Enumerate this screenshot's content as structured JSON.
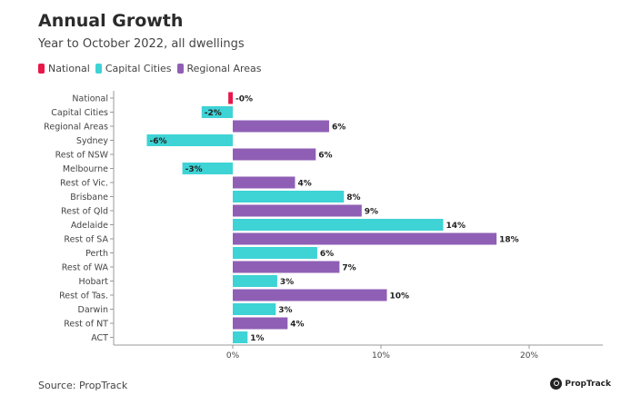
{
  "header": {
    "title": "Annual Growth",
    "subtitle": "Year to October 2022, all dwellings"
  },
  "legend": [
    {
      "label": "National",
      "color": "#e8174a"
    },
    {
      "label": "Capital Cities",
      "color": "#3ed3d5"
    },
    {
      "label": "Regional Areas",
      "color": "#8f5fb5"
    }
  ],
  "footer": {
    "source": "Source: PropTrack",
    "brand": "PropTrack"
  },
  "chart_data": {
    "type": "bar",
    "orientation": "horizontal",
    "title": "Annual Growth",
    "subtitle": "Year to October 2022, all dwellings",
    "xlabel": "",
    "ylabel": "",
    "xlim": [
      -8,
      25
    ],
    "xticks": [
      0,
      10,
      20
    ],
    "xtick_labels": [
      "0%",
      "10%",
      "20%"
    ],
    "categories": [
      "National",
      "Capital Cities",
      "Regional Areas",
      "Sydney",
      "Rest of NSW",
      "Melbourne",
      "Rest of Vic.",
      "Brisbane",
      "Rest of Qld",
      "Adelaide",
      "Rest of SA",
      "Perth",
      "Rest of WA",
      "Hobart",
      "Rest of Tas.",
      "Darwin",
      "Rest of NT",
      "ACT"
    ],
    "values": [
      -0.3,
      -2.1,
      6.5,
      -5.8,
      5.6,
      -3.4,
      4.2,
      7.5,
      8.7,
      14.2,
      17.8,
      5.7,
      7.2,
      3.0,
      10.4,
      2.9,
      3.7,
      1.0
    ],
    "series_membership": [
      "National",
      "Capital Cities",
      "Regional Areas",
      "Capital Cities",
      "Regional Areas",
      "Capital Cities",
      "Regional Areas",
      "Capital Cities",
      "Regional Areas",
      "Capital Cities",
      "Regional Areas",
      "Capital Cities",
      "Regional Areas",
      "Capital Cities",
      "Regional Areas",
      "Capital Cities",
      "Regional Areas",
      "Capital Cities"
    ],
    "value_labels": [
      "-0%",
      "-2%",
      "6%",
      "-6%",
      "6%",
      "-3%",
      "4%",
      "8%",
      "9%",
      "14%",
      "18%",
      "6%",
      "7%",
      "3%",
      "10%",
      "3%",
      "4%",
      "1%"
    ],
    "legend_position": "top-left",
    "grid": false
  }
}
